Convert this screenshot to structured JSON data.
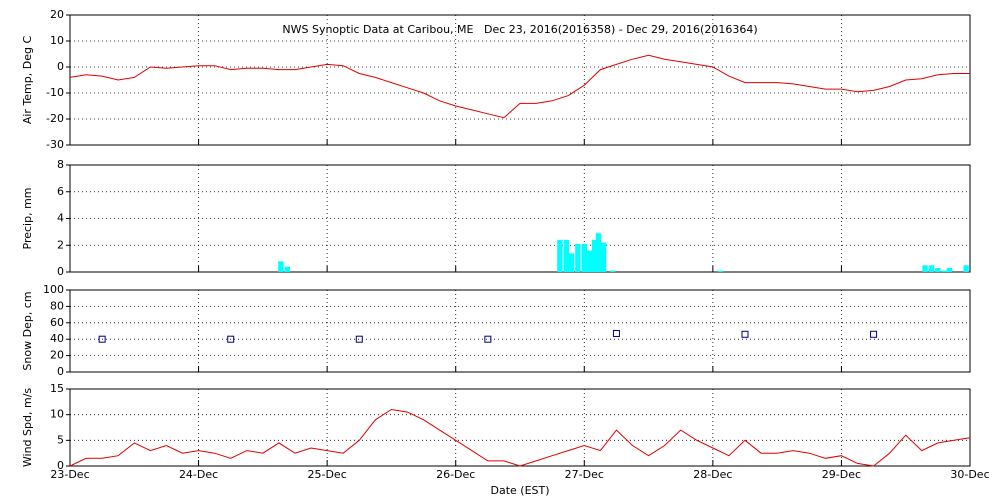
{
  "chart_data": [
    {
      "type": "line",
      "title": "NWS Synoptic Data at Caribou, ME   Dec 23, 2016(2016358) - Dec 29, 2016(2016364)",
      "ylabel": "Air Temp, Deg C",
      "color": "#e00000",
      "x": [
        0,
        0.125,
        0.25,
        0.375,
        0.5,
        0.625,
        0.75,
        0.875,
        1,
        1.125,
        1.25,
        1.375,
        1.5,
        1.625,
        1.75,
        1.875,
        2,
        2.125,
        2.25,
        2.375,
        2.5,
        2.625,
        2.75,
        2.875,
        3,
        3.125,
        3.25,
        3.375,
        3.5,
        3.625,
        3.75,
        3.875,
        4,
        4.125,
        4.25,
        4.375,
        4.5,
        4.625,
        4.75,
        4.875,
        5,
        5.125,
        5.25,
        5.375,
        5.5,
        5.625,
        5.75,
        5.875,
        6,
        6.125,
        6.25,
        6.375,
        6.5,
        6.625,
        6.75,
        6.875,
        7
      ],
      "values": [
        -4,
        -3,
        -3.5,
        -5,
        -4,
        0,
        -0.5,
        0,
        0.5,
        0.5,
        -1,
        -0.5,
        -0.5,
        -1,
        -1,
        0,
        1,
        0.5,
        -2.5,
        -4,
        -6,
        -8,
        -10,
        -13,
        -15,
        -16.5,
        -18,
        -19.5,
        -14,
        -14,
        -13,
        -11,
        -7,
        -1,
        1,
        3,
        4.5,
        3,
        2,
        1,
        0,
        -3.5,
        -6,
        -6,
        -6,
        -6.5,
        -7.5,
        -8.5,
        -8.5,
        -9.5,
        -9,
        -7.5,
        -5,
        -4.5,
        -3,
        -2.5,
        -2.5
      ],
      "xlim": [
        0,
        7
      ],
      "xticks": [
        0,
        1,
        2,
        3,
        4,
        5,
        6,
        7
      ],
      "ylim": [
        -30,
        20
      ],
      "yticks": [
        -30,
        -20,
        -10,
        0,
        10,
        20
      ],
      "grid": true
    },
    {
      "type": "bar",
      "ylabel": "Precip, mm",
      "color": "#00ffff",
      "x": [
        1.64,
        1.69,
        3.81,
        3.86,
        3.9,
        3.95,
        4,
        4.04,
        4.08,
        4.11,
        4.15,
        4.22,
        5.06,
        6.65,
        6.7,
        6.75,
        6.8,
        6.84,
        6.97
      ],
      "values": [
        0.8,
        0.4,
        2.4,
        2.4,
        1.4,
        2.1,
        2.1,
        1.6,
        2.4,
        2.9,
        2.2,
        0.1,
        0.1,
        0.5,
        0.5,
        0.3,
        0.1,
        0.3,
        0.5
      ],
      "xlim": [
        0,
        7
      ],
      "xticks": [
        0,
        1,
        2,
        3,
        4,
        5,
        6,
        7
      ],
      "ylim": [
        0,
        8
      ],
      "yticks": [
        0,
        2,
        4,
        6,
        8
      ],
      "grid": true
    },
    {
      "type": "scatter",
      "ylabel": "Snow Dep, cm",
      "color": "#000080",
      "x": [
        0.25,
        1.25,
        2.25,
        3.25,
        4.25,
        5.25,
        6.25
      ],
      "values": [
        40,
        40,
        40,
        40,
        47,
        46,
        46
      ],
      "xlim": [
        0,
        7
      ],
      "xticks": [
        0,
        1,
        2,
        3,
        4,
        5,
        6,
        7
      ],
      "ylim": [
        0,
        100
      ],
      "yticks": [
        0,
        20,
        40,
        60,
        80,
        100
      ],
      "grid": true
    },
    {
      "type": "line",
      "ylabel": "Wind Spd, m/s",
      "xlabel": "Date (EST)",
      "color": "#e00000",
      "x": [
        0,
        0.125,
        0.25,
        0.375,
        0.5,
        0.625,
        0.75,
        0.875,
        1,
        1.125,
        1.25,
        1.375,
        1.5,
        1.625,
        1.75,
        1.875,
        2,
        2.125,
        2.25,
        2.375,
        2.5,
        2.625,
        2.75,
        2.875,
        3,
        3.125,
        3.25,
        3.375,
        3.5,
        3.625,
        3.75,
        3.875,
        4,
        4.125,
        4.25,
        4.375,
        4.5,
        4.625,
        4.75,
        4.875,
        5,
        5.125,
        5.25,
        5.375,
        5.5,
        5.625,
        5.75,
        5.875,
        6,
        6.125,
        6.25,
        6.375,
        6.5,
        6.625,
        6.75,
        6.875,
        7
      ],
      "values": [
        0,
        1.5,
        1.5,
        2,
        4.5,
        3,
        4,
        2.5,
        3,
        2.5,
        1.5,
        3,
        2.5,
        4.5,
        2.5,
        3.5,
        3,
        2.5,
        5,
        9,
        11,
        10.5,
        9,
        7,
        5,
        3,
        1,
        1,
        0,
        1,
        2,
        3,
        4,
        3,
        7,
        4,
        2,
        4,
        7,
        5,
        3.5,
        2,
        5,
        2.5,
        2.5,
        3,
        2.5,
        1.5,
        2,
        0.5,
        0,
        2.5,
        6,
        3,
        4.5,
        5,
        5.5
      ],
      "xlim": [
        0,
        7
      ],
      "xticks": [
        {
          "value": 0,
          "label": "23-Dec"
        },
        {
          "value": 1,
          "label": "24-Dec"
        },
        {
          "value": 2,
          "label": "25-Dec"
        },
        {
          "value": 3,
          "label": "26-Dec"
        },
        {
          "value": 4,
          "label": "27-Dec"
        },
        {
          "value": 5,
          "label": "28-Dec"
        },
        {
          "value": 6,
          "label": "29-Dec"
        },
        {
          "value": 7,
          "label": "30-Dec"
        }
      ],
      "ylim": [
        0,
        15
      ],
      "yticks": [
        0,
        5,
        10,
        15
      ],
      "grid": true
    }
  ]
}
